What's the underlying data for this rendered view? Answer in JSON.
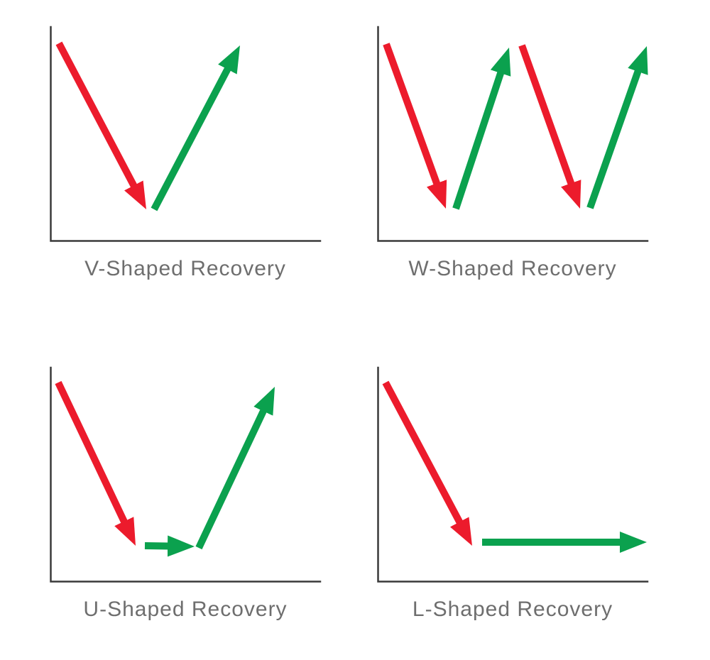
{
  "colors": {
    "decline": "#ec1b2c",
    "recovery": "#0ba14e",
    "axis": "#3a3a3a",
    "caption": "#6e6e6e"
  },
  "panels": [
    {
      "id": "v-shaped",
      "label": "V-Shaped Recovery",
      "arrows": [
        {
          "role": "decline",
          "from": [
            13,
            24
          ],
          "to": [
            136,
            258
          ]
        },
        {
          "role": "recovery",
          "from": [
            147,
            258
          ],
          "to": [
            268,
            27
          ]
        }
      ]
    },
    {
      "id": "w-shaped",
      "label": "W-Shaped Recovery",
      "arrows": [
        {
          "role": "decline",
          "from": [
            13,
            25
          ],
          "to": [
            97,
            257
          ]
        },
        {
          "role": "recovery",
          "from": [
            111,
            257
          ],
          "to": [
            186,
            30
          ]
        },
        {
          "role": "decline",
          "from": [
            204,
            27
          ],
          "to": [
            286,
            257
          ]
        },
        {
          "role": "recovery",
          "from": [
            300,
            256
          ],
          "to": [
            380,
            28
          ]
        }
      ]
    },
    {
      "id": "u-shaped",
      "label": "U-Shaped Recovery",
      "arrows": [
        {
          "role": "decline",
          "from": [
            12,
            22
          ],
          "to": [
            121,
            252
          ]
        },
        {
          "role": "recovery",
          "from": [
            134,
            252
          ],
          "to": [
            204,
            253
          ]
        },
        {
          "role": "recovery",
          "from": [
            210,
            255
          ],
          "to": [
            317,
            28
          ]
        }
      ]
    },
    {
      "id": "l-shaped",
      "label": "L-Shaped Recovery",
      "arrows": [
        {
          "role": "decline",
          "from": [
            12,
            22
          ],
          "to": [
            134,
            252
          ]
        },
        {
          "role": "recovery",
          "from": [
            148,
            247
          ],
          "to": [
            380,
            247
          ]
        }
      ]
    }
  ]
}
